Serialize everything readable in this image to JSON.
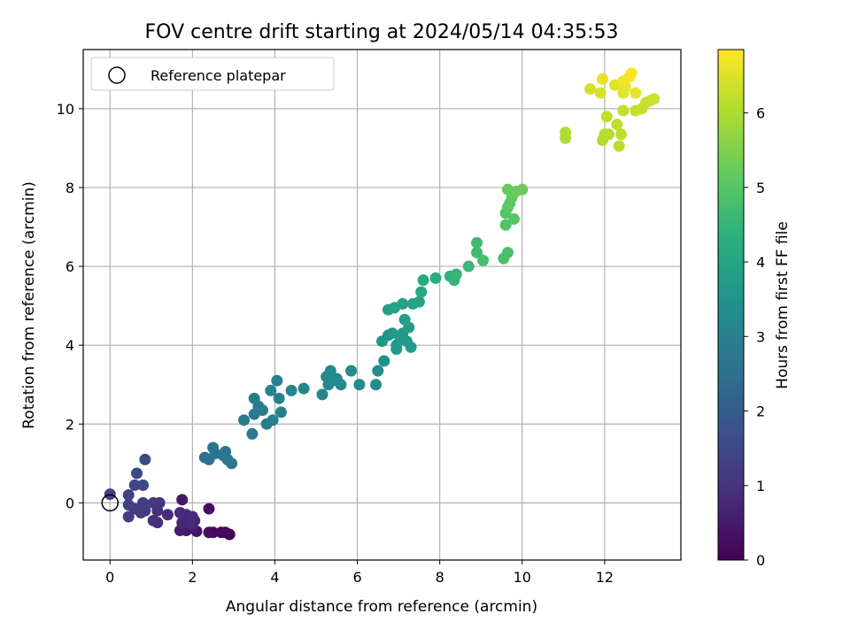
{
  "chart_data": {
    "type": "scatter",
    "title": "FOV centre drift starting at 2024/05/14 04:35:53",
    "xlabel": "Angular distance from reference (arcmin)",
    "ylabel": "Rotation from reference (arcmin)",
    "xlim": [
      -0.65,
      13.85
    ],
    "ylim": [
      -1.45,
      11.5
    ],
    "xticks": [
      0,
      2,
      4,
      6,
      8,
      10,
      12
    ],
    "yticks": [
      0,
      2,
      4,
      6,
      8,
      10
    ],
    "grid": true,
    "legend": {
      "position": "top-left",
      "entries": [
        "Reference platepar"
      ]
    },
    "reference_point": {
      "x": 0,
      "y": 0
    },
    "colorbar": {
      "label": "Hours from first FF file",
      "range": [
        0,
        6.85
      ],
      "ticks": [
        0,
        1,
        2,
        3,
        4,
        5,
        6
      ],
      "colormap": "viridis"
    },
    "points": [
      {
        "x": 2.9,
        "y": -0.8,
        "t": 0.05
      },
      {
        "x": 2.8,
        "y": -0.75,
        "t": 0.1
      },
      {
        "x": 2.7,
        "y": -0.75,
        "t": 0.15
      },
      {
        "x": 2.5,
        "y": -0.75,
        "t": 0.2
      },
      {
        "x": 2.4,
        "y": -0.75,
        "t": 0.25
      },
      {
        "x": 2.4,
        "y": -0.15,
        "t": 0.3
      },
      {
        "x": 2.1,
        "y": -0.72,
        "t": 0.35
      },
      {
        "x": 1.85,
        "y": -0.7,
        "t": 0.4
      },
      {
        "x": 1.75,
        "y": 0.08,
        "t": 0.45
      },
      {
        "x": 1.7,
        "y": -0.7,
        "t": 0.5
      },
      {
        "x": 2.0,
        "y": -0.6,
        "t": 0.55
      },
      {
        "x": 1.9,
        "y": -0.4,
        "t": 0.6
      },
      {
        "x": 2.05,
        "y": -0.45,
        "t": 0.65
      },
      {
        "x": 1.75,
        "y": -0.5,
        "t": 0.7
      },
      {
        "x": 1.85,
        "y": -0.3,
        "t": 0.72
      },
      {
        "x": 1.95,
        "y": -0.55,
        "t": 0.75
      },
      {
        "x": 1.7,
        "y": -0.25,
        "t": 0.8
      },
      {
        "x": 2.0,
        "y": -0.35,
        "t": 0.82
      },
      {
        "x": 1.4,
        "y": -0.3,
        "t": 0.85
      },
      {
        "x": 1.15,
        "y": -0.5,
        "t": 0.9
      },
      {
        "x": 1.05,
        "y": -0.45,
        "t": 0.95
      },
      {
        "x": 1.15,
        "y": -0.2,
        "t": 1.0
      },
      {
        "x": 1.2,
        "y": 0.0,
        "t": 1.05
      },
      {
        "x": 1.05,
        "y": 0.0,
        "t": 1.08
      },
      {
        "x": 0.85,
        "y": -0.2,
        "t": 1.1
      },
      {
        "x": 0.75,
        "y": -0.25,
        "t": 1.15
      },
      {
        "x": 0.8,
        "y": 0.0,
        "t": 1.2
      },
      {
        "x": 0.6,
        "y": -0.15,
        "t": 1.22
      },
      {
        "x": 0.45,
        "y": -0.35,
        "t": 1.25
      },
      {
        "x": 0.45,
        "y": -0.05,
        "t": 1.3
      },
      {
        "x": 0.45,
        "y": 0.2,
        "t": 1.35
      },
      {
        "x": 0.0,
        "y": 0.22,
        "t": 1.38
      },
      {
        "x": 0.6,
        "y": 0.45,
        "t": 1.42
      },
      {
        "x": 0.8,
        "y": 0.45,
        "t": 1.46
      },
      {
        "x": 0.65,
        "y": 0.75,
        "t": 1.5
      },
      {
        "x": 0.85,
        "y": 1.1,
        "t": 1.55
      },
      {
        "x": 2.3,
        "y": 1.15,
        "t": 2.5
      },
      {
        "x": 2.4,
        "y": 1.1,
        "t": 2.55
      },
      {
        "x": 2.5,
        "y": 1.4,
        "t": 2.6
      },
      {
        "x": 2.55,
        "y": 1.25,
        "t": 2.62
      },
      {
        "x": 2.8,
        "y": 1.3,
        "t": 2.65
      },
      {
        "x": 2.85,
        "y": 1.1,
        "t": 2.68
      },
      {
        "x": 2.95,
        "y": 1.0,
        "t": 2.7
      },
      {
        "x": 2.75,
        "y": 1.2,
        "t": 2.72
      },
      {
        "x": 3.45,
        "y": 1.75,
        "t": 2.75
      },
      {
        "x": 3.25,
        "y": 2.1,
        "t": 2.8
      },
      {
        "x": 3.5,
        "y": 2.25,
        "t": 2.82
      },
      {
        "x": 3.6,
        "y": 2.45,
        "t": 2.85
      },
      {
        "x": 3.5,
        "y": 2.65,
        "t": 2.88
      },
      {
        "x": 3.7,
        "y": 2.35,
        "t": 2.9
      },
      {
        "x": 3.8,
        "y": 2.0,
        "t": 2.92
      },
      {
        "x": 3.95,
        "y": 2.1,
        "t": 2.95
      },
      {
        "x": 4.15,
        "y": 2.3,
        "t": 2.97
      },
      {
        "x": 4.1,
        "y": 2.65,
        "t": 3.0
      },
      {
        "x": 3.9,
        "y": 2.85,
        "t": 3.02
      },
      {
        "x": 4.05,
        "y": 3.1,
        "t": 3.05
      },
      {
        "x": 4.4,
        "y": 2.85,
        "t": 3.08
      },
      {
        "x": 4.7,
        "y": 2.9,
        "t": 3.1
      },
      {
        "x": 5.15,
        "y": 2.75,
        "t": 3.12
      },
      {
        "x": 5.3,
        "y": 3.0,
        "t": 3.15
      },
      {
        "x": 5.25,
        "y": 3.2,
        "t": 3.18
      },
      {
        "x": 5.35,
        "y": 3.35,
        "t": 3.2
      },
      {
        "x": 5.4,
        "y": 3.1,
        "t": 3.22
      },
      {
        "x": 5.5,
        "y": 3.15,
        "t": 3.25
      },
      {
        "x": 5.6,
        "y": 3.0,
        "t": 3.27
      },
      {
        "x": 5.85,
        "y": 3.35,
        "t": 3.3
      },
      {
        "x": 6.05,
        "y": 3.0,
        "t": 3.32
      },
      {
        "x": 6.45,
        "y": 3.0,
        "t": 3.35
      },
      {
        "x": 6.5,
        "y": 3.35,
        "t": 3.38
      },
      {
        "x": 6.65,
        "y": 3.6,
        "t": 3.42
      },
      {
        "x": 6.6,
        "y": 4.1,
        "t": 3.5
      },
      {
        "x": 6.75,
        "y": 4.25,
        "t": 3.55
      },
      {
        "x": 6.85,
        "y": 4.3,
        "t": 3.6
      },
      {
        "x": 6.95,
        "y": 4.0,
        "t": 3.62
      },
      {
        "x": 6.95,
        "y": 3.9,
        "t": 3.65
      },
      {
        "x": 7.05,
        "y": 4.15,
        "t": 3.67
      },
      {
        "x": 7.1,
        "y": 4.3,
        "t": 3.7
      },
      {
        "x": 7.2,
        "y": 4.1,
        "t": 3.72
      },
      {
        "x": 7.3,
        "y": 3.95,
        "t": 3.75
      },
      {
        "x": 7.25,
        "y": 4.45,
        "t": 3.78
      },
      {
        "x": 7.15,
        "y": 4.65,
        "t": 3.8
      },
      {
        "x": 6.75,
        "y": 4.9,
        "t": 3.85
      },
      {
        "x": 6.9,
        "y": 4.95,
        "t": 3.88
      },
      {
        "x": 7.1,
        "y": 5.05,
        "t": 3.9
      },
      {
        "x": 7.35,
        "y": 5.05,
        "t": 3.95
      },
      {
        "x": 7.5,
        "y": 5.1,
        "t": 4.0
      },
      {
        "x": 7.55,
        "y": 5.35,
        "t": 4.1
      },
      {
        "x": 7.6,
        "y": 5.65,
        "t": 4.2
      },
      {
        "x": 7.9,
        "y": 5.7,
        "t": 4.3
      },
      {
        "x": 8.25,
        "y": 5.75,
        "t": 4.4
      },
      {
        "x": 8.35,
        "y": 5.65,
        "t": 4.45
      },
      {
        "x": 8.4,
        "y": 5.8,
        "t": 4.5
      },
      {
        "x": 8.7,
        "y": 6.0,
        "t": 4.6
      },
      {
        "x": 8.9,
        "y": 6.35,
        "t": 4.65
      },
      {
        "x": 8.9,
        "y": 6.6,
        "t": 4.7
      },
      {
        "x": 9.05,
        "y": 6.15,
        "t": 4.75
      },
      {
        "x": 9.55,
        "y": 6.2,
        "t": 4.8
      },
      {
        "x": 9.65,
        "y": 6.35,
        "t": 4.82
      },
      {
        "x": 9.6,
        "y": 7.05,
        "t": 4.9
      },
      {
        "x": 9.6,
        "y": 7.35,
        "t": 4.95
      },
      {
        "x": 9.8,
        "y": 7.2,
        "t": 5.0
      },
      {
        "x": 9.65,
        "y": 7.5,
        "t": 5.05
      },
      {
        "x": 9.7,
        "y": 7.6,
        "t": 5.1
      },
      {
        "x": 9.75,
        "y": 7.75,
        "t": 5.15
      },
      {
        "x": 9.65,
        "y": 7.95,
        "t": 5.2
      },
      {
        "x": 9.85,
        "y": 7.9,
        "t": 5.25
      },
      {
        "x": 10.0,
        "y": 7.95,
        "t": 5.3
      },
      {
        "x": 11.05,
        "y": 9.25,
        "t": 6.0
      },
      {
        "x": 11.05,
        "y": 9.4,
        "t": 6.02
      },
      {
        "x": 11.95,
        "y": 9.2,
        "t": 6.05
      },
      {
        "x": 12.0,
        "y": 9.35,
        "t": 6.08
      },
      {
        "x": 12.1,
        "y": 9.35,
        "t": 6.1
      },
      {
        "x": 12.35,
        "y": 9.05,
        "t": 6.12
      },
      {
        "x": 12.4,
        "y": 9.35,
        "t": 6.15
      },
      {
        "x": 12.3,
        "y": 9.6,
        "t": 6.18
      },
      {
        "x": 12.05,
        "y": 9.8,
        "t": 6.2
      },
      {
        "x": 12.45,
        "y": 9.95,
        "t": 6.22
      },
      {
        "x": 12.75,
        "y": 9.95,
        "t": 6.25
      },
      {
        "x": 12.9,
        "y": 10.0,
        "t": 6.28
      },
      {
        "x": 13.0,
        "y": 10.15,
        "t": 6.3
      },
      {
        "x": 13.1,
        "y": 10.2,
        "t": 6.32
      },
      {
        "x": 13.2,
        "y": 10.25,
        "t": 6.35
      },
      {
        "x": 11.65,
        "y": 10.5,
        "t": 6.4
      },
      {
        "x": 11.9,
        "y": 10.4,
        "t": 6.45
      },
      {
        "x": 12.25,
        "y": 10.6,
        "t": 6.5
      },
      {
        "x": 12.45,
        "y": 10.4,
        "t": 6.55
      },
      {
        "x": 12.5,
        "y": 10.55,
        "t": 6.58
      },
      {
        "x": 12.75,
        "y": 10.4,
        "t": 6.6
      },
      {
        "x": 11.95,
        "y": 10.75,
        "t": 6.62
      },
      {
        "x": 12.45,
        "y": 10.7,
        "t": 6.7
      },
      {
        "x": 12.6,
        "y": 10.8,
        "t": 6.75
      },
      {
        "x": 12.65,
        "y": 10.9,
        "t": 6.8
      }
    ]
  }
}
